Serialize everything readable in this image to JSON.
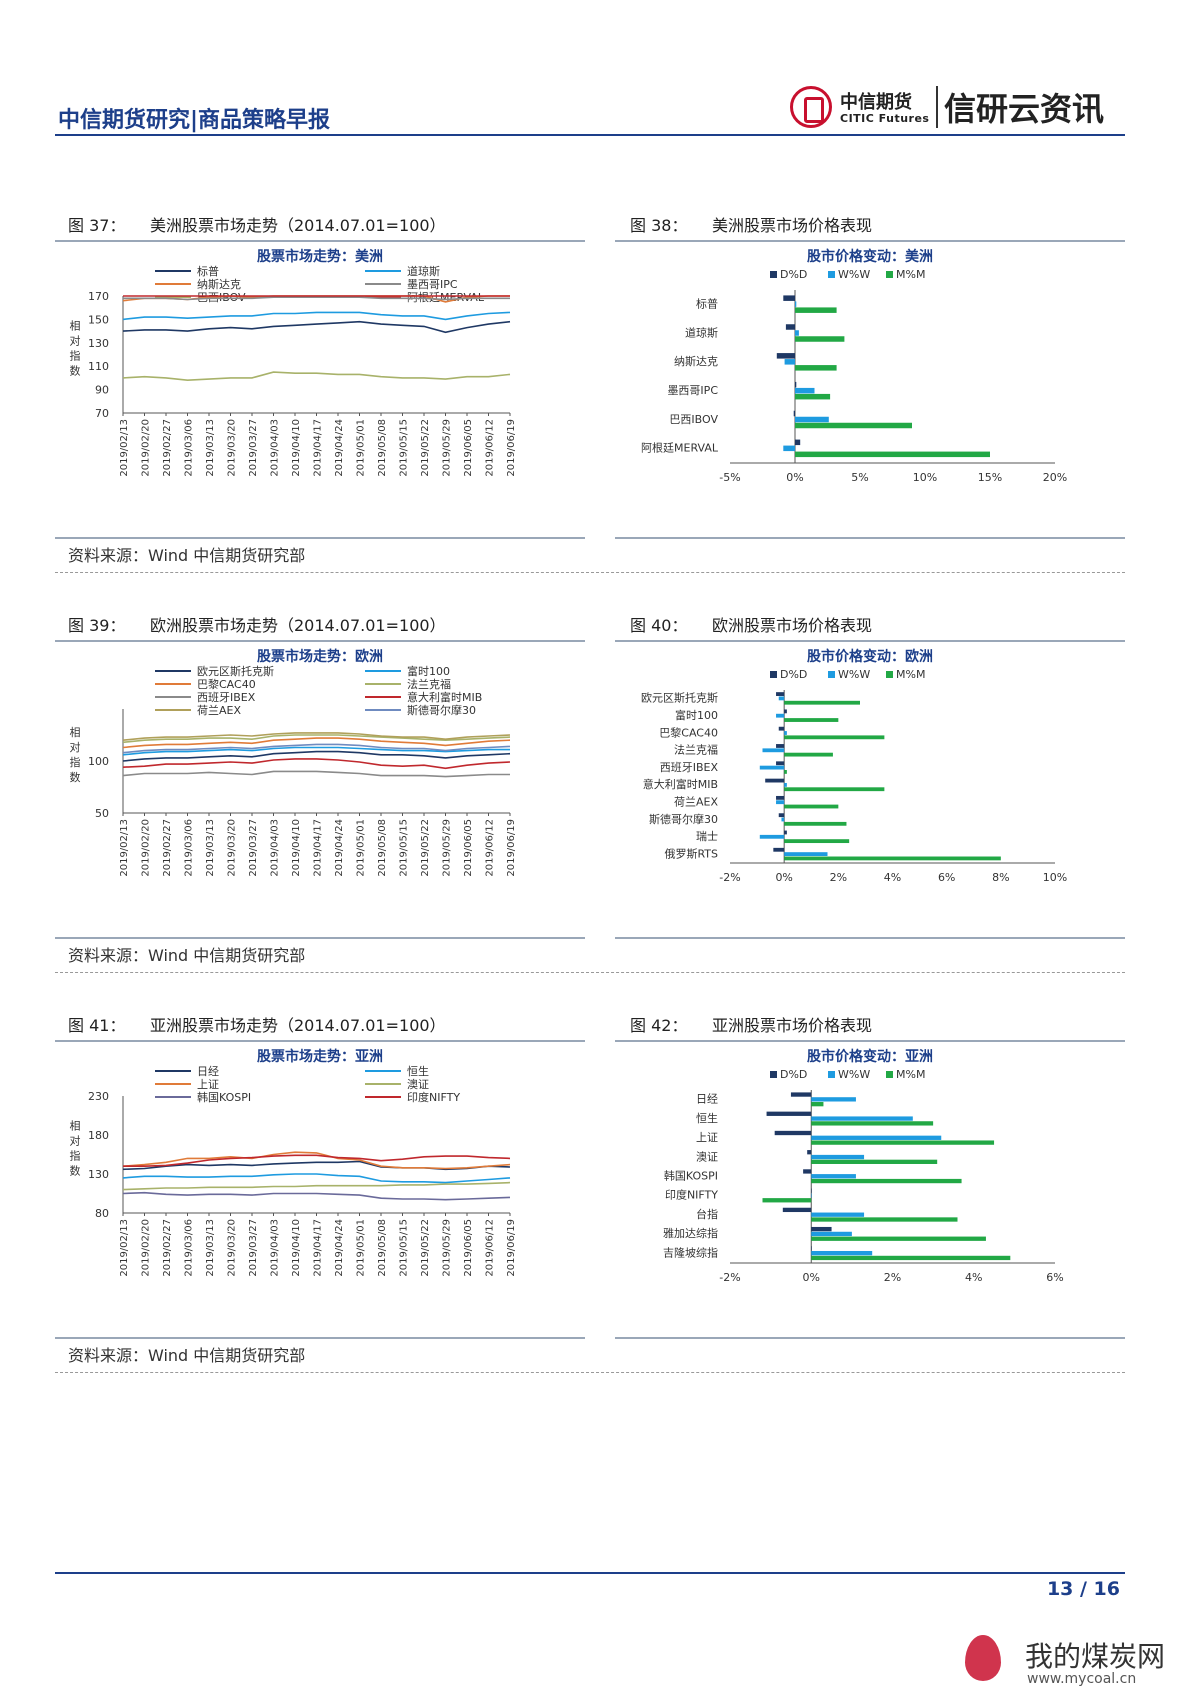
{
  "header": {
    "title": "中信期货研究|商品策略早报",
    "logo_cn": "中信期货",
    "logo_en": "CITIC Futures",
    "logo_brand": "信研云资讯"
  },
  "figures": {
    "f37": {
      "num": "图 37：",
      "title": "美洲股票市场走势（2014.07.01=100）"
    },
    "f38": {
      "num": "图 38：",
      "title": "美洲股票市场价格表现"
    },
    "f39": {
      "num": "图 39：",
      "title": "欧洲股票市场走势（2014.07.01=100）"
    },
    "f40": {
      "num": "图 40：",
      "title": "欧洲股票市场价格表现"
    },
    "f41": {
      "num": "图 41：",
      "title": "亚洲股票市场走势（2014.07.01=100）"
    },
    "f42": {
      "num": "图 42：",
      "title": "亚洲股票市场价格表现"
    }
  },
  "source_text": "资料来源：Wind  中信期货研究部",
  "footer": {
    "page": "13 / 16",
    "watermark": "我的煤炭网",
    "watermark_url": "www.mycoal.cn"
  },
  "colors": {
    "brand_blue": "#1d3f8a",
    "D": "#1f3864",
    "W": "#1e9be0",
    "M": "#22a845"
  },
  "chart_data": [
    {
      "id": "americas_line",
      "type": "line",
      "title": "股票市场走势：美洲",
      "ylabel": "相对指数",
      "ylim": [
        70,
        170
      ],
      "yticks": [
        70,
        90,
        110,
        130,
        150,
        170
      ],
      "x": [
        "2019/02/13",
        "2019/02/20",
        "2019/02/27",
        "2019/03/06",
        "2019/03/13",
        "2019/03/20",
        "2019/03/27",
        "2019/04/03",
        "2019/04/10",
        "2019/04/17",
        "2019/04/24",
        "2019/05/01",
        "2019/05/08",
        "2019/05/15",
        "2019/05/22",
        "2019/05/29",
        "2019/06/05",
        "2019/06/12",
        "2019/06/19"
      ],
      "series": [
        {
          "name": "标普",
          "color": "#1f3864",
          "values": [
            140,
            141,
            141,
            140,
            142,
            143,
            142,
            144,
            145,
            146,
            147,
            148,
            146,
            145,
            144,
            139,
            143,
            146,
            148
          ]
        },
        {
          "name": "道琼斯",
          "color": "#1e9be0",
          "values": [
            150,
            152,
            152,
            151,
            152,
            153,
            153,
            155,
            155,
            156,
            156,
            156,
            154,
            153,
            153,
            150,
            153,
            155,
            156
          ]
        },
        {
          "name": "纳斯达克",
          "color": "#e07b39",
          "values": [
            166,
            168,
            168,
            167,
            169,
            170,
            169,
            172,
            173,
            174,
            175,
            176,
            173,
            171,
            170,
            165,
            169,
            172,
            175
          ]
        },
        {
          "name": "墨西哥IPC",
          "color": "#8a8a8a",
          "values": [
            168,
            168,
            168,
            167,
            168,
            168,
            168,
            169,
            169,
            169,
            169,
            169,
            168,
            168,
            168,
            167,
            168,
            168,
            168
          ]
        },
        {
          "name": "巴西IBOV",
          "color": "#a8b26a",
          "values": [
            100,
            101,
            100,
            98,
            99,
            100,
            100,
            105,
            104,
            104,
            103,
            103,
            101,
            100,
            100,
            99,
            101,
            101,
            103
          ]
        },
        {
          "name": "阿根廷MERVAL",
          "color": "#c0282d",
          "values": [
            170,
            170,
            170,
            170,
            170,
            170,
            170,
            170,
            170,
            170,
            170,
            170,
            170,
            170,
            170,
            170,
            170,
            170,
            170
          ]
        }
      ]
    },
    {
      "id": "americas_bar",
      "type": "bar",
      "title": "股市价格变动：美洲",
      "legend": [
        "D%D",
        "W%W",
        "M%M"
      ],
      "categories": [
        "标普",
        "道琼斯",
        "纳斯达克",
        "墨西哥IPC",
        "巴西IBOV",
        "阿根廷MERVAL"
      ],
      "xlim": [
        -5,
        20
      ],
      "xticks": [
        -5,
        0,
        5,
        10,
        15,
        20
      ],
      "D": [
        -0.9,
        -0.7,
        -1.4,
        0.1,
        -0.1,
        0.4
      ],
      "W": [
        0.1,
        0.3,
        -0.8,
        1.5,
        2.6,
        -0.9
      ],
      "M": [
        3.2,
        3.8,
        3.2,
        2.7,
        9.0,
        15.0
      ]
    },
    {
      "id": "europe_line",
      "type": "line",
      "title": "股票市场走势：欧洲",
      "ylabel": "相对指数",
      "ylim": [
        50,
        150
      ],
      "yticks": [
        50,
        100
      ],
      "x": [
        "2019/02/13",
        "2019/02/20",
        "2019/02/27",
        "2019/03/06",
        "2019/03/13",
        "2019/03/20",
        "2019/03/27",
        "2019/04/03",
        "2019/04/10",
        "2019/04/17",
        "2019/04/24",
        "2019/05/01",
        "2019/05/08",
        "2019/05/15",
        "2019/05/22",
        "2019/05/29",
        "2019/06/05",
        "2019/06/12",
        "2019/06/19"
      ],
      "series": [
        {
          "name": "欧元区斯托克斯",
          "color": "#1f3864",
          "values": [
            100,
            102,
            103,
            103,
            104,
            105,
            104,
            107,
            108,
            109,
            109,
            108,
            106,
            106,
            105,
            103,
            105,
            106,
            107
          ]
        },
        {
          "name": "富时100",
          "color": "#1e9be0",
          "values": [
            106,
            108,
            109,
            109,
            110,
            111,
            110,
            112,
            113,
            113,
            113,
            112,
            111,
            110,
            110,
            109,
            110,
            111,
            111
          ]
        },
        {
          "name": "巴黎CAC40",
          "color": "#e07b39",
          "values": [
            113,
            115,
            116,
            116,
            117,
            118,
            117,
            120,
            121,
            122,
            122,
            121,
            119,
            118,
            117,
            115,
            117,
            119,
            120
          ]
        },
        {
          "name": "法兰克福",
          "color": "#a8b26a",
          "values": [
            118,
            120,
            121,
            121,
            122,
            122,
            121,
            124,
            125,
            125,
            125,
            124,
            123,
            122,
            121,
            120,
            121,
            122,
            123
          ]
        },
        {
          "name": "西班牙IBEX",
          "color": "#8a8a8a",
          "values": [
            86,
            88,
            88,
            88,
            89,
            88,
            87,
            90,
            90,
            90,
            89,
            88,
            86,
            86,
            86,
            85,
            86,
            87,
            87
          ]
        },
        {
          "name": "意大利富时MIB",
          "color": "#c0282d",
          "values": [
            94,
            95,
            97,
            97,
            98,
            99,
            98,
            101,
            102,
            102,
            101,
            99,
            96,
            95,
            96,
            93,
            96,
            98,
            99
          ]
        },
        {
          "name": "荷兰AEX",
          "color": "#b0a05a",
          "values": [
            120,
            122,
            123,
            123,
            124,
            125,
            124,
            126,
            127,
            127,
            127,
            126,
            124,
            123,
            123,
            121,
            123,
            124,
            125
          ]
        },
        {
          "name": "斯德哥尔摩30",
          "color": "#6f8bc0",
          "values": [
            108,
            110,
            111,
            111,
            112,
            113,
            112,
            114,
            115,
            116,
            116,
            115,
            113,
            112,
            112,
            110,
            112,
            113,
            114
          ]
        }
      ]
    },
    {
      "id": "europe_bar",
      "type": "bar",
      "title": "股市价格变动：欧洲",
      "legend": [
        "D%D",
        "W%W",
        "M%M"
      ],
      "categories": [
        "欧元区斯托克斯",
        "富时100",
        "巴黎CAC40",
        "法兰克福",
        "西班牙IBEX",
        "意大利富时MIB",
        "荷兰AEX",
        "斯德哥尔摩30",
        "瑞士",
        "俄罗斯RTS"
      ],
      "xlim": [
        -2,
        10
      ],
      "xticks": [
        -2,
        0,
        2,
        4,
        6,
        8,
        10
      ],
      "D": [
        -0.3,
        0.1,
        -0.2,
        -0.3,
        -0.3,
        -0.7,
        -0.3,
        -0.2,
        0.1,
        -0.4
      ],
      "W": [
        -0.2,
        -0.3,
        0.1,
        -0.8,
        -0.9,
        0.1,
        -0.3,
        -0.1,
        -0.9,
        1.6
      ],
      "M": [
        2.8,
        2.0,
        3.7,
        1.8,
        0.1,
        3.7,
        2.0,
        2.3,
        2.4,
        8.0
      ]
    },
    {
      "id": "asia_line",
      "type": "line",
      "title": "股票市场走势：亚洲",
      "ylabel": "相对指数",
      "ylim": [
        80,
        230
      ],
      "yticks": [
        80,
        130,
        180,
        230
      ],
      "x": [
        "2019/02/13",
        "2019/02/20",
        "2019/02/27",
        "2019/03/06",
        "2019/03/13",
        "2019/03/20",
        "2019/03/27",
        "2019/04/03",
        "2019/04/10",
        "2019/04/17",
        "2019/04/24",
        "2019/05/01",
        "2019/05/08",
        "2019/05/15",
        "2019/05/22",
        "2019/05/29",
        "2019/06/05",
        "2019/06/12",
        "2019/06/19"
      ],
      "series": [
        {
          "name": "日经",
          "color": "#1f3864",
          "values": [
            136,
            137,
            140,
            142,
            141,
            142,
            141,
            143,
            144,
            145,
            145,
            146,
            139,
            138,
            138,
            136,
            137,
            140,
            139
          ]
        },
        {
          "name": "恒生",
          "color": "#1e9be0",
          "values": [
            125,
            127,
            127,
            126,
            126,
            127,
            127,
            129,
            130,
            130,
            128,
            127,
            121,
            120,
            120,
            119,
            121,
            123,
            125
          ]
        },
        {
          "name": "上证",
          "color": "#e07b39",
          "values": [
            140,
            142,
            145,
            150,
            150,
            152,
            150,
            155,
            158,
            157,
            150,
            148,
            140,
            138,
            138,
            137,
            138,
            140,
            142
          ]
        },
        {
          "name": "澳证",
          "color": "#a8b26a",
          "values": [
            110,
            111,
            112,
            112,
            113,
            113,
            113,
            114,
            114,
            115,
            115,
            115,
            115,
            116,
            116,
            117,
            117,
            118,
            119
          ]
        },
        {
          "name": "韩国KOSPI",
          "color": "#6a6a9a",
          "values": [
            105,
            106,
            104,
            103,
            104,
            104,
            103,
            105,
            105,
            105,
            104,
            103,
            99,
            98,
            98,
            97,
            98,
            99,
            100
          ]
        },
        {
          "name": "印度NIFTY",
          "color": "#c0282d",
          "values": [
            140,
            140,
            141,
            144,
            148,
            150,
            151,
            153,
            154,
            154,
            151,
            150,
            147,
            149,
            152,
            153,
            153,
            151,
            150
          ]
        }
      ]
    },
    {
      "id": "asia_bar",
      "type": "bar",
      "title": "股市价格变动：亚洲",
      "legend": [
        "D%D",
        "W%W",
        "M%M"
      ],
      "categories": [
        "日经",
        "恒生",
        "上证",
        "澳证",
        "韩国KOSPI",
        "印度NIFTY",
        "台指",
        "雅加达综指",
        "吉隆坡综指"
      ],
      "xlim": [
        -2,
        6
      ],
      "xticks": [
        -2,
        0,
        2,
        4,
        6
      ],
      "D": [
        -0.5,
        -1.1,
        -0.9,
        -0.1,
        -0.2,
        0.0,
        -0.7,
        0.5,
        0.0
      ],
      "W": [
        1.1,
        2.5,
        3.2,
        1.3,
        1.1,
        0.0,
        1.3,
        1.0,
        1.5
      ],
      "M": [
        0.3,
        3.0,
        4.5,
        3.1,
        3.7,
        -1.2,
        3.6,
        4.3,
        4.9
      ]
    }
  ]
}
